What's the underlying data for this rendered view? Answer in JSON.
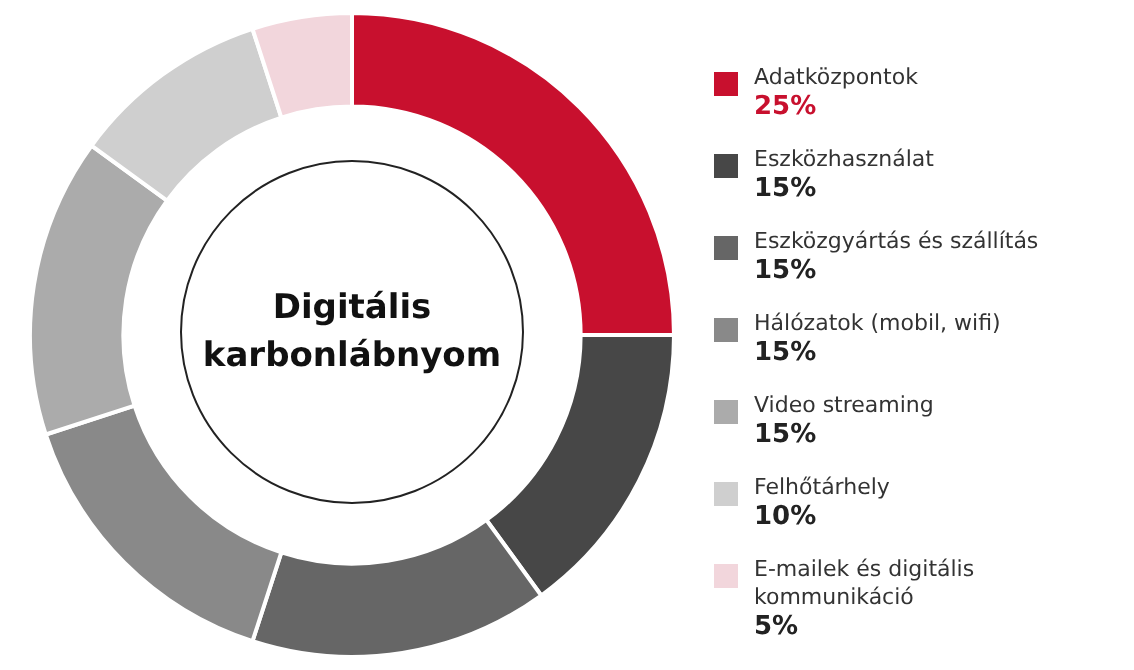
{
  "chart_data": {
    "type": "donut",
    "title": "Digitális karbonlábnyom",
    "categories": [
      "Adatközpontok",
      "Eszközhasználat",
      "Eszközgyártás és szállítás",
      "Hálózatok (mobil, wifi)",
      "Video streaming",
      "Felhőtárhely",
      "E-mailek és digitális kommunikáció"
    ],
    "values": [
      25,
      15,
      15,
      15,
      15,
      10,
      5
    ],
    "value_labels": [
      "25%",
      "15%",
      "15%",
      "15%",
      "15%",
      "10%",
      "5%"
    ],
    "colors": [
      "#c8102e",
      "#474747",
      "#666666",
      "#898989",
      "#ababab",
      "#cfcfcf",
      "#f2d6dc"
    ],
    "legend": "right"
  }
}
